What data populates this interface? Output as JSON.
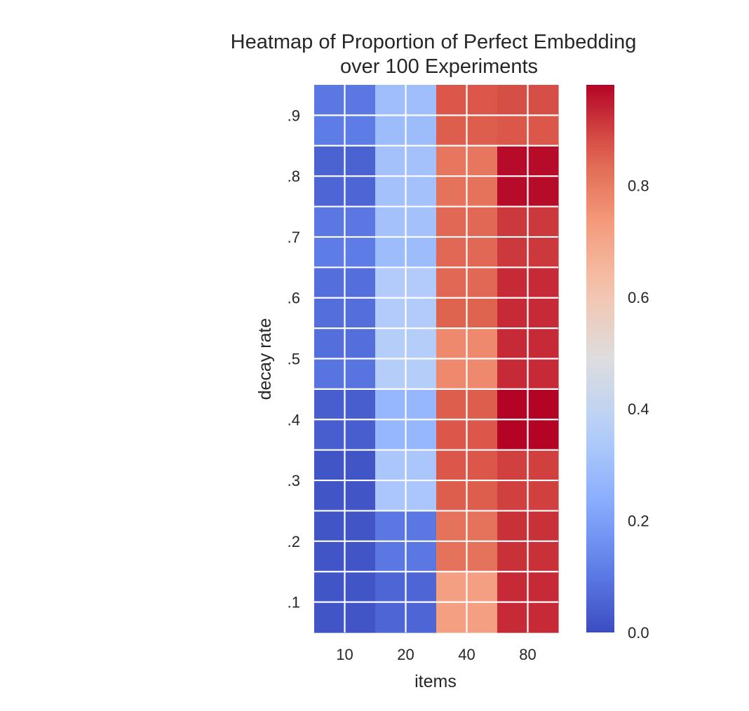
{
  "chart_data": {
    "type": "heatmap",
    "title": [
      "Heatmap of Proportion of Perfect Embedding",
      "over 100 Experiments"
    ],
    "xlabel": "items",
    "ylabel": "decay rate",
    "x_categories": [
      "10",
      "20",
      "40",
      "80"
    ],
    "y_tick_labels": [
      ".9",
      ".8",
      ".7",
      ".6",
      ".5",
      ".4",
      ".3",
      ".2",
      ".1"
    ],
    "colormap": "coolwarm",
    "color_range": [
      0,
      0.98
    ],
    "colorbar_ticks": [
      "0.0",
      "0.2",
      "0.4",
      "0.6",
      "0.8"
    ],
    "grid": "white lines between rows, white line at each x tick",
    "values": [
      [
        0.1,
        0.1,
        0.3,
        0.3,
        0.87,
        0.87,
        0.88,
        0.88
      ],
      [
        0.11,
        0.11,
        0.29,
        0.29,
        0.86,
        0.86,
        0.87,
        0.87
      ],
      [
        0.05,
        0.05,
        0.31,
        0.31,
        0.81,
        0.81,
        0.97,
        0.97
      ],
      [
        0.06,
        0.06,
        0.31,
        0.31,
        0.82,
        0.82,
        0.97,
        0.97
      ],
      [
        0.1,
        0.1,
        0.31,
        0.31,
        0.84,
        0.84,
        0.91,
        0.91
      ],
      [
        0.11,
        0.11,
        0.29,
        0.29,
        0.84,
        0.84,
        0.91,
        0.91
      ],
      [
        0.08,
        0.08,
        0.35,
        0.35,
        0.84,
        0.84,
        0.93,
        0.93
      ],
      [
        0.08,
        0.08,
        0.35,
        0.35,
        0.85,
        0.85,
        0.93,
        0.93
      ],
      [
        0.08,
        0.08,
        0.36,
        0.36,
        0.77,
        0.77,
        0.93,
        0.93
      ],
      [
        0.09,
        0.09,
        0.36,
        0.36,
        0.77,
        0.77,
        0.93,
        0.93
      ],
      [
        0.04,
        0.04,
        0.27,
        0.27,
        0.86,
        0.86,
        0.98,
        0.98
      ],
      [
        0.04,
        0.04,
        0.27,
        0.27,
        0.87,
        0.87,
        0.98,
        0.98
      ],
      [
        0.02,
        0.02,
        0.33,
        0.33,
        0.87,
        0.87,
        0.9,
        0.9
      ],
      [
        0.02,
        0.02,
        0.33,
        0.33,
        0.86,
        0.86,
        0.9,
        0.9
      ],
      [
        0.02,
        0.02,
        0.1,
        0.1,
        0.82,
        0.82,
        0.92,
        0.92
      ],
      [
        0.02,
        0.02,
        0.1,
        0.1,
        0.82,
        0.82,
        0.92,
        0.92
      ],
      [
        0.02,
        0.02,
        0.06,
        0.06,
        0.72,
        0.72,
        0.93,
        0.93
      ],
      [
        0.02,
        0.02,
        0.06,
        0.06,
        0.72,
        0.72,
        0.93,
        0.93
      ]
    ]
  }
}
